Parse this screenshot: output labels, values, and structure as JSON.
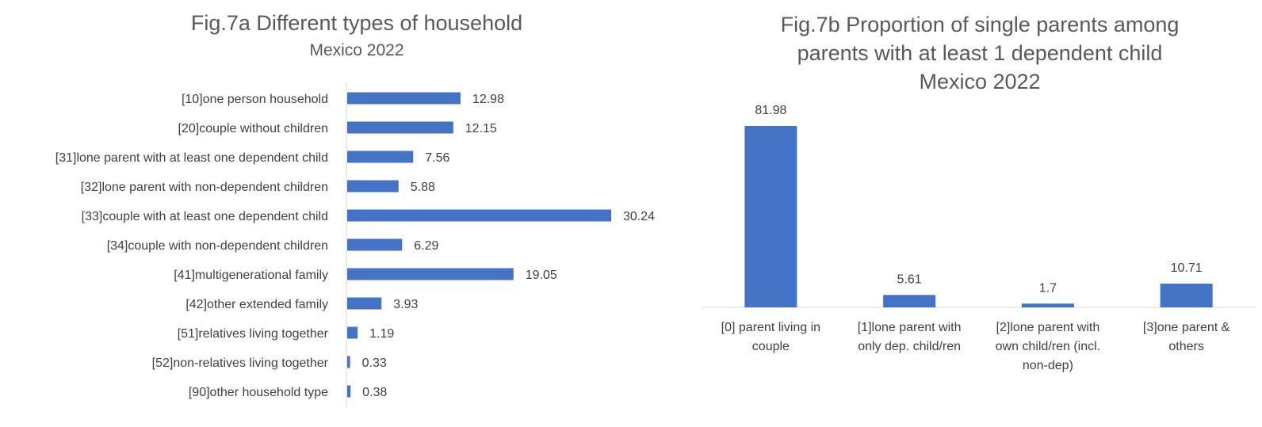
{
  "chart_data": [
    {
      "type": "bar",
      "orientation": "horizontal",
      "title": "Fig.7a Different types of household",
      "subtitle": "Mexico 2022",
      "categories": [
        "[10]one person household",
        "[20]couple without children",
        "[31]lone parent with at least one dependent child",
        "[32]lone parent with non-dependent children",
        "[33]couple with at least one dependent child",
        "[34]couple with non-dependent children",
        "[41]multigenerational family",
        "[42]other extended family",
        "[51]relatives living together",
        "[52]non-relatives living together",
        "[90]other household type"
      ],
      "values": [
        12.98,
        12.15,
        7.56,
        5.88,
        30.24,
        6.29,
        19.05,
        3.93,
        1.19,
        0.33,
        0.38
      ],
      "value_labels": [
        "12.98",
        "12.15",
        "7.56",
        "5.88",
        "30.24",
        "6.29",
        "19.05",
        "3.93",
        "1.19",
        "0.33",
        "0.38"
      ],
      "xlim": [
        0,
        33
      ],
      "color": "#4472c4",
      "grid": false,
      "legend": "none"
    },
    {
      "type": "bar",
      "orientation": "vertical",
      "title_lines": [
        "Fig.7b Proportion of single parents among",
        "parents with at least 1 dependent child",
        "Mexico 2022"
      ],
      "categories": [
        [
          "[0] parent living in",
          "couple"
        ],
        [
          "[1]lone parent with",
          "only dep. child/ren"
        ],
        [
          "[2]lone parent with",
          "own child/ren (incl.",
          "non-dep)"
        ],
        [
          "[3]one parent &",
          "others"
        ]
      ],
      "values": [
        81.98,
        5.61,
        1.7,
        10.71
      ],
      "value_labels": [
        "81.98",
        "5.61",
        "1.7",
        "10.71"
      ],
      "ylim": [
        0,
        90
      ],
      "color": "#4472c4",
      "grid": false,
      "legend": "none"
    }
  ]
}
